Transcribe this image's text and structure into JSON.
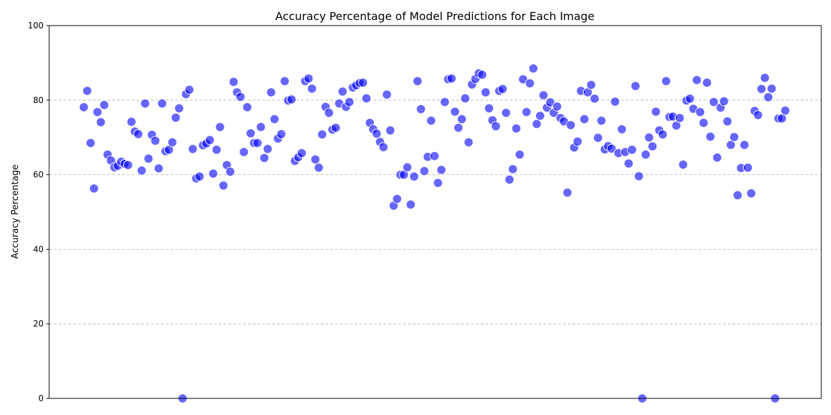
{
  "chart_data": {
    "type": "scatter",
    "title": "Accuracy Percentage of Model Predictions for Each Image",
    "xlabel": "",
    "ylabel": "Accuracy Percentage",
    "ylim": [
      0,
      100
    ],
    "yticks": [
      0,
      20,
      40,
      60,
      80,
      100
    ],
    "grid": "y-dashed",
    "marker_color": "#0000ff",
    "marker_opacity": 0.6,
    "x_axis_labels_shown": false,
    "values": [
      78.1,
      82.5,
      68.5,
      56.3,
      76.8,
      74.1,
      78.7,
      65.4,
      63.8,
      62.0,
      62.4,
      63.5,
      62.9,
      62.6,
      74.2,
      71.6,
      70.9,
      61.1,
      79.1,
      64.3,
      70.7,
      69.1,
      61.7,
      79.1,
      66.3,
      66.7,
      68.7,
      75.3,
      77.8,
      0.0,
      81.6,
      82.8,
      66.9,
      59.0,
      59.5,
      67.9,
      68.4,
      69.3,
      60.3,
      66.7,
      72.8,
      57.1,
      62.6,
      60.8,
      84.9,
      82.1,
      80.9,
      66.1,
      78.1,
      71.1,
      68.5,
      68.5,
      72.8,
      64.5,
      66.9,
      82.1,
      74.9,
      69.7,
      70.9,
      85.1,
      79.9,
      80.2,
      63.7,
      64.7,
      65.8,
      85.1,
      85.8,
      83.1,
      64.1,
      61.9,
      70.8,
      78.2,
      76.6,
      72.1,
      72.6,
      79.1,
      82.3,
      78.2,
      79.5,
      83.4,
      84.0,
      84.6,
      84.7,
      80.5,
      73.9,
      72.2,
      71.0,
      68.8,
      67.4,
      81.5,
      71.9,
      51.7,
      53.5,
      60.0,
      60.0,
      62.0,
      52.0,
      59.5,
      85.1,
      77.6,
      61.0,
      64.8,
      74.5,
      65.0,
      57.8,
      61.3,
      79.5,
      85.6,
      85.8,
      76.9,
      72.6,
      74.9,
      80.5,
      68.7,
      84.2,
      85.7,
      87.2,
      86.8,
      82.1,
      77.8,
      74.6,
      73.0,
      82.5,
      83.0,
      76.6,
      58.7,
      61.5,
      72.4,
      65.4,
      85.6,
      76.8,
      84.5,
      88.5,
      73.6,
      75.8,
      81.3,
      78.0,
      79.4,
      76.6,
      78.3,
      75.2,
      74.3,
      55.2,
      73.3,
      67.3,
      68.9,
      82.5,
      74.9,
      82.1,
      84.1,
      80.4,
      69.9,
      74.5,
      66.8,
      67.7,
      67.0,
      79.6,
      65.8,
      72.2,
      66.1,
      63.0,
      66.7,
      83.8,
      59.6,
      0.0,
      65.4,
      70.0,
      67.6,
      76.9,
      71.9,
      70.8,
      85.1,
      75.5,
      75.6,
      73.2,
      75.2,
      62.7,
      79.9,
      80.4,
      77.7,
      85.4,
      76.8,
      73.9,
      84.7,
      70.2,
      79.5,
      64.6,
      78.0,
      79.7,
      74.3,
      68.0,
      70.1,
      54.5,
      61.8,
      68.0,
      61.9,
      55.0,
      77.1,
      76.0,
      83.0,
      86.0,
      80.8,
      83.1,
      0.0,
      75.1,
      75.1,
      77.2
    ]
  }
}
